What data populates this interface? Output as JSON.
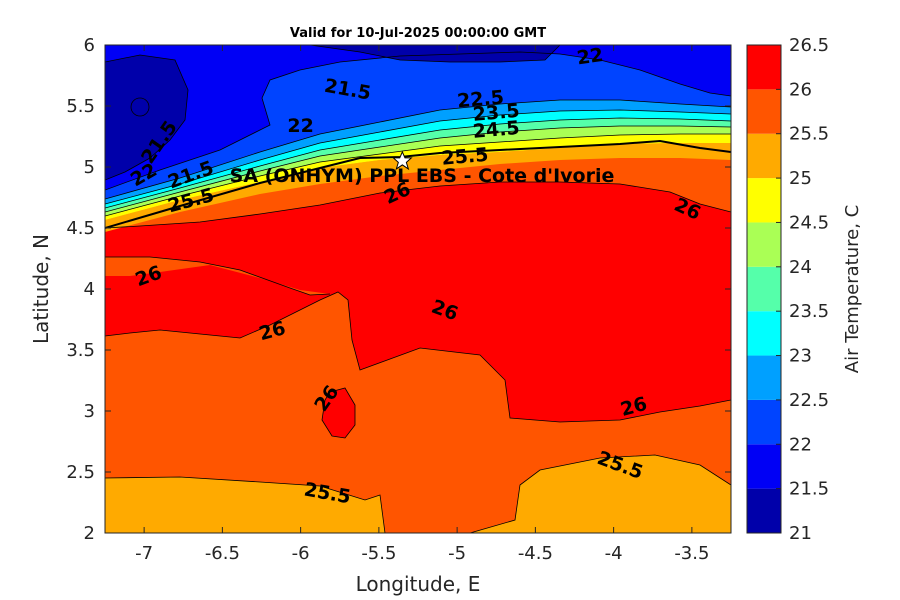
{
  "chart_data": {
    "type": "heatmap",
    "title": "Valid for 10-Jul-2025 00:00:00 GMT",
    "xlabel": "Longitude, E",
    "ylabel": "Latitude, N",
    "xlim": [
      -7.25,
      -3.25
    ],
    "ylim": [
      2,
      6
    ],
    "x_ticks": [
      -7,
      -6.5,
      -6,
      -5.5,
      -5,
      -4.5,
      -4,
      -3.5
    ],
    "x_tick_labels": [
      "-7",
      "-6.5",
      "-6",
      "-5.5",
      "-5",
      "-4.5",
      "-4",
      "-3.5"
    ],
    "y_ticks": [
      2,
      2.5,
      3,
      3.5,
      4,
      4.5,
      5,
      5.5,
      6
    ],
    "y_tick_labels": [
      "2",
      "2.5",
      "3",
      "3.5",
      "4",
      "4.5",
      "5",
      "5.5",
      "6"
    ],
    "colorbar": {
      "label": "Air Temperature, C",
      "levels": [
        21,
        21.5,
        22,
        22.5,
        23,
        23.5,
        24,
        24.5,
        25,
        25.5,
        26,
        26.5
      ],
      "tick_labels": [
        "21",
        "21.5",
        "22",
        "22.5",
        "23",
        "23.5",
        "24",
        "24.5",
        "25",
        "25.5",
        "26",
        "26.5"
      ],
      "colors": [
        "#0000aa",
        "#0000f5",
        "#0044ff",
        "#00a0ff",
        "#00ffff",
        "#55ffaa",
        "#aaff55",
        "#ffff00",
        "#ffaa00",
        "#ff5500",
        "#ff0000"
      ]
    },
    "site": {
      "label": "SA (ONHYM) PPL EBS  - Cote d'Ivorie",
      "lon": -5.35,
      "lat": 5.05
    },
    "contour_labels": [
      {
        "text": "22",
        "lon": -4.15,
        "lat": 5.9,
        "rot": -8
      },
      {
        "text": "21.5",
        "lon": -5.7,
        "lat": 5.63,
        "rot": 10
      },
      {
        "text": "22",
        "lon": -6.0,
        "lat": 5.33,
        "rot": 0
      },
      {
        "text": "21.5",
        "lon": -6.9,
        "lat": 5.2,
        "rot": -55
      },
      {
        "text": "22.5",
        "lon": -4.85,
        "lat": 5.55,
        "rot": -5
      },
      {
        "text": "23.5",
        "lon": -4.75,
        "lat": 5.44,
        "rot": -5
      },
      {
        "text": "24.5",
        "lon": -4.75,
        "lat": 5.3,
        "rot": -5
      },
      {
        "text": "25.5",
        "lon": -4.95,
        "lat": 5.08,
        "rot": -5
      },
      {
        "text": "22",
        "lon": -7.0,
        "lat": 4.93,
        "rot": -30
      },
      {
        "text": "21.5",
        "lon": -6.7,
        "lat": 4.93,
        "rot": -20
      },
      {
        "text": "25.5",
        "lon": -6.7,
        "lat": 4.72,
        "rot": -15
      },
      {
        "text": "26",
        "lon": -5.38,
        "lat": 4.78,
        "rot": -25
      },
      {
        "text": "26",
        "lon": -3.53,
        "lat": 4.65,
        "rot": 25
      },
      {
        "text": "26",
        "lon": -6.97,
        "lat": 4.1,
        "rot": -20
      },
      {
        "text": "26",
        "lon": -5.08,
        "lat": 3.82,
        "rot": 20
      },
      {
        "text": "26",
        "lon": -6.18,
        "lat": 3.65,
        "rot": -15
      },
      {
        "text": "26",
        "lon": -5.83,
        "lat": 3.1,
        "rot": -55
      },
      {
        "text": "26",
        "lon": -3.87,
        "lat": 3.03,
        "rot": -15
      },
      {
        "text": "25.5",
        "lon": -5.83,
        "lat": 2.32,
        "rot": 10
      },
      {
        "text": "25.5",
        "lon": -3.96,
        "lat": 2.55,
        "rot": 20
      }
    ]
  }
}
